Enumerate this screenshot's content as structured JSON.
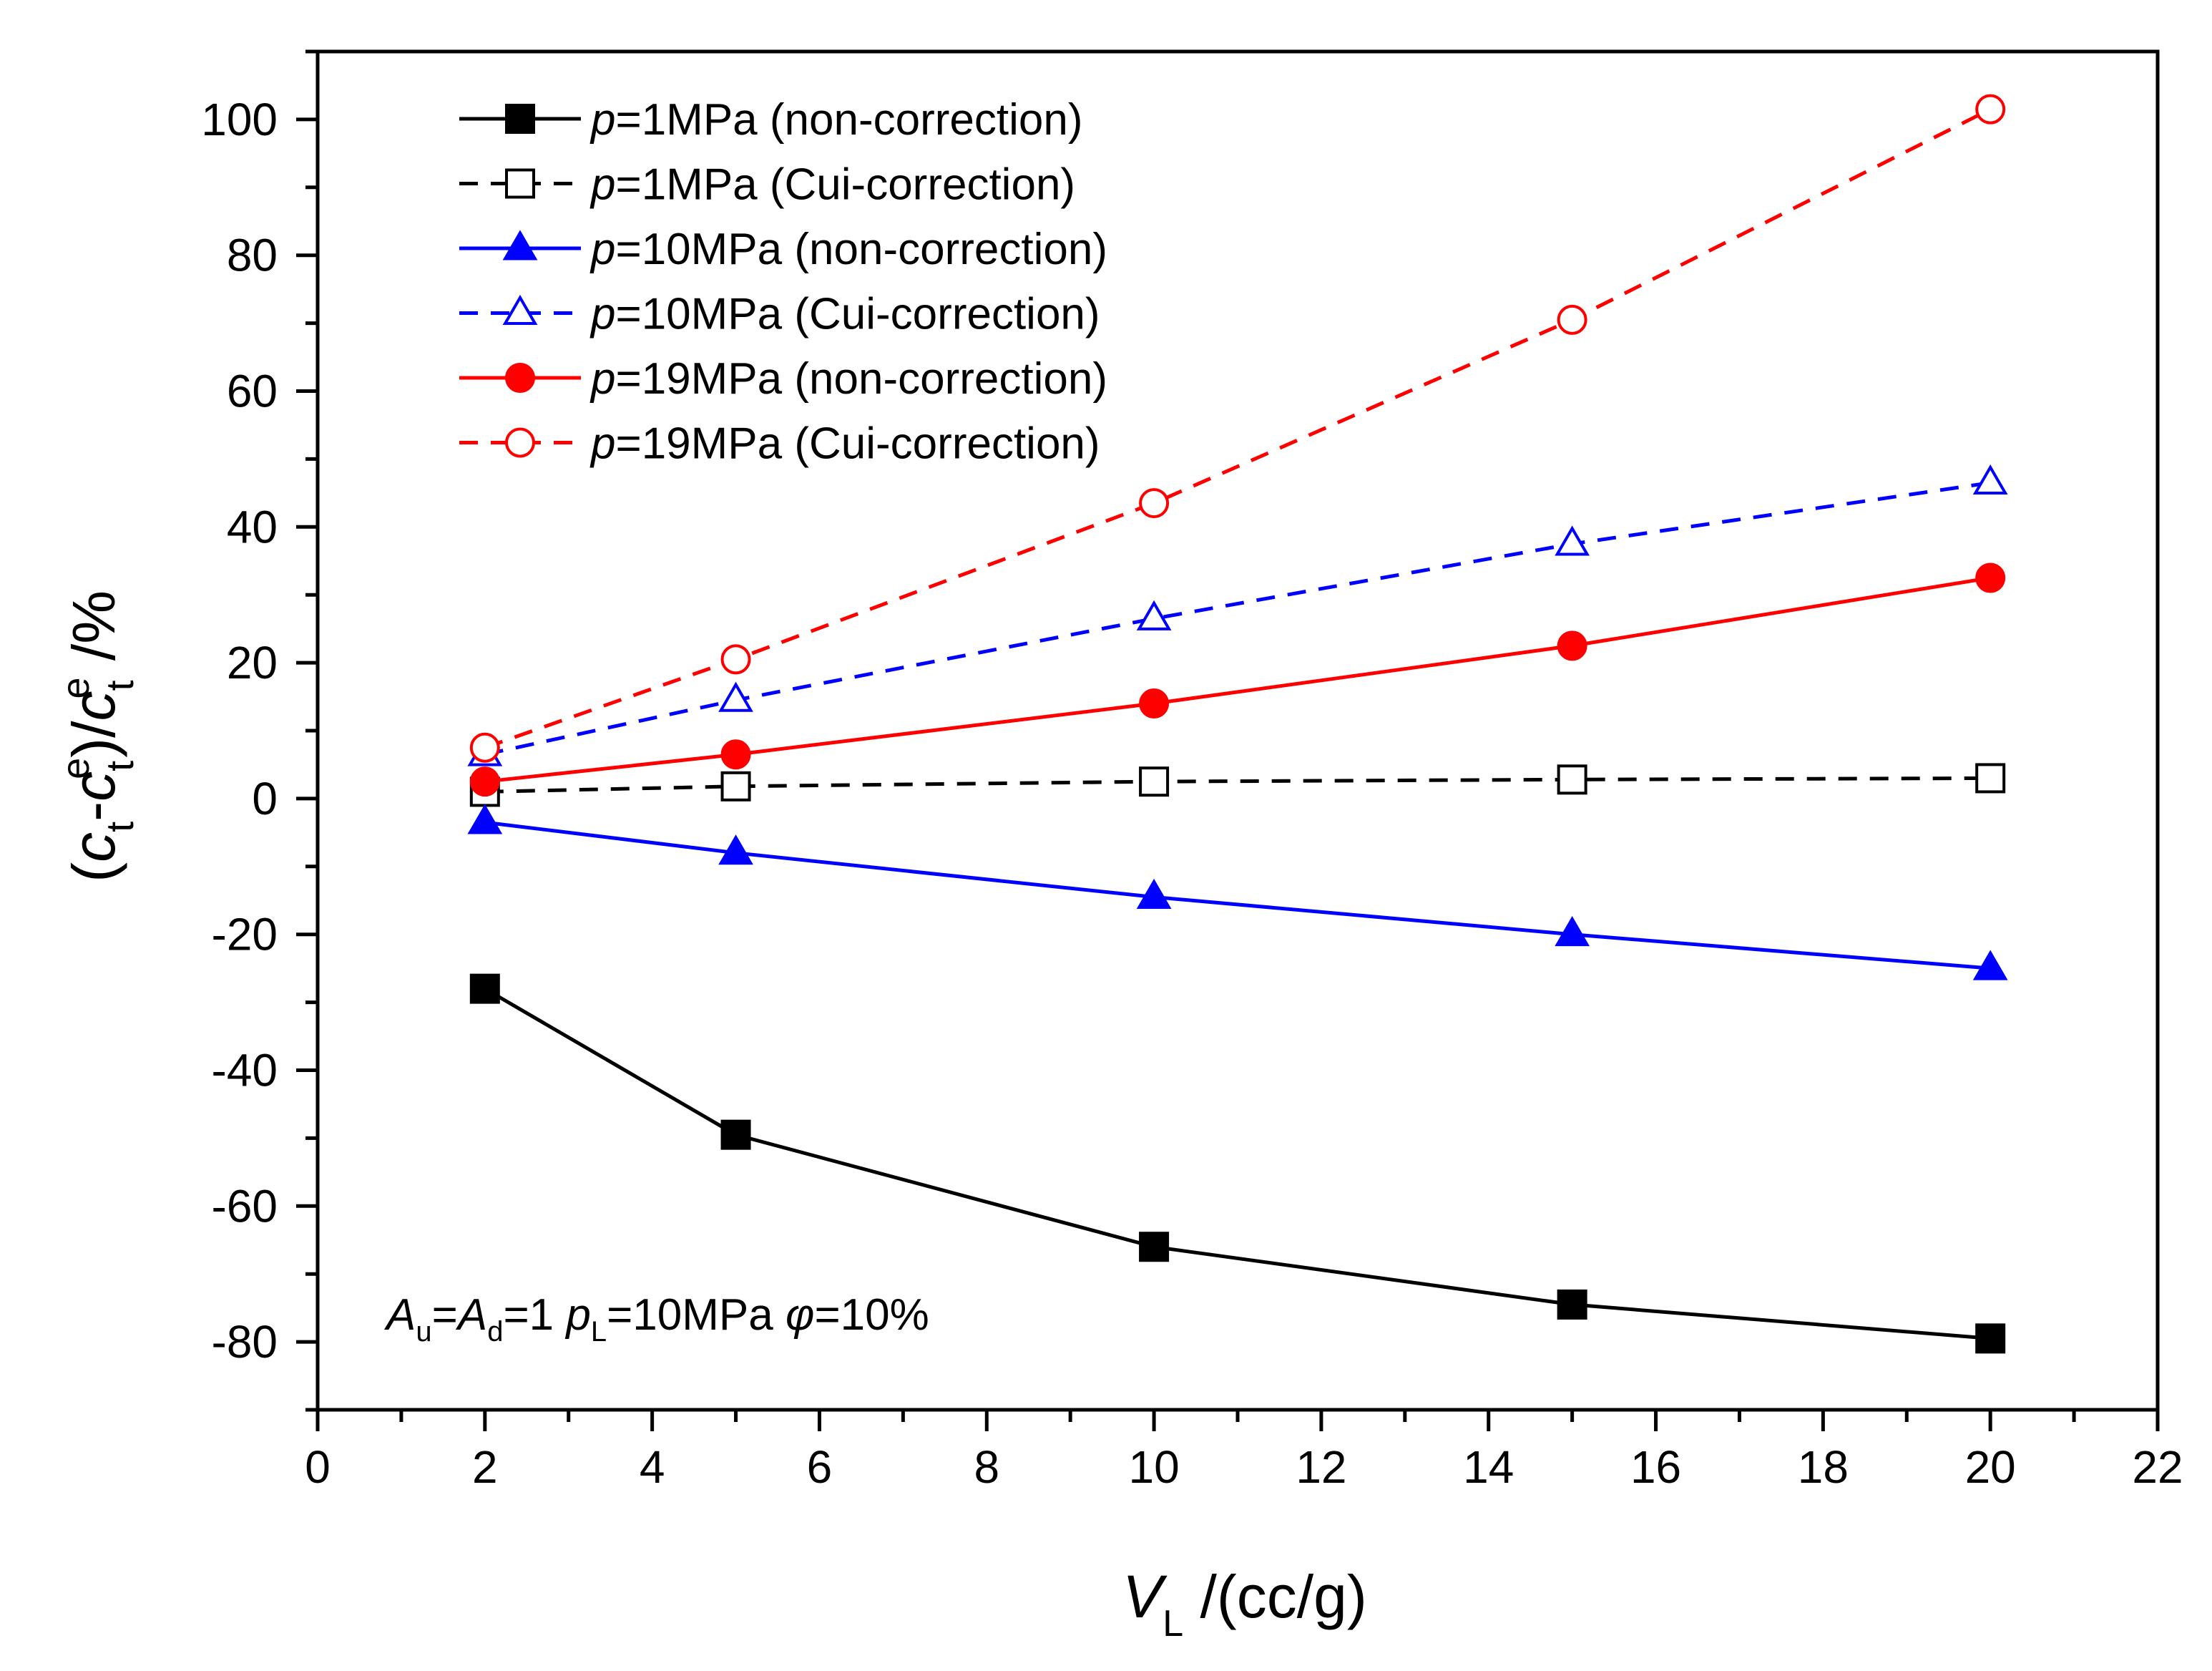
{
  "chart_data": {
    "type": "line",
    "xlabel": {
      "main": "V",
      "sub": "L",
      "rest": " /(cc/g)"
    },
    "ylabel": "(c_t - c_t^e)/c_t^e /%",
    "xlim": [
      0,
      22
    ],
    "ylim": [
      -90,
      110
    ],
    "x_ticks": [
      0,
      2,
      4,
      6,
      8,
      10,
      12,
      14,
      16,
      18,
      20,
      22
    ],
    "y_ticks": [
      -80,
      -60,
      -40,
      -20,
      0,
      20,
      40,
      60,
      80,
      100
    ],
    "x": [
      2,
      5,
      10,
      15,
      20
    ],
    "legend_position": "top-left",
    "grid": false,
    "series": [
      {
        "name": "p=1MPa (non-correction)",
        "p": "p",
        "rest": "=1MPa (non-correction)",
        "values": [
          -28,
          -49.5,
          -66,
          -74.5,
          -79.5
        ],
        "color": "#000000",
        "marker": "square",
        "filled": true,
        "dashed": false
      },
      {
        "name": "p=1MPa (Cui-correction)",
        "p": "p",
        "rest": "=1MPa (Cui-correction)",
        "values": [
          1,
          1.8,
          2.5,
          2.8,
          3
        ],
        "color": "#000000",
        "marker": "square",
        "filled": false,
        "dashed": true
      },
      {
        "name": "p=10MPa (non-correction)",
        "p": "p",
        "rest": "=10MPa (non-correction)",
        "values": [
          -3.5,
          -8,
          -14.5,
          -20,
          -25
        ],
        "color": "#0000ff",
        "marker": "triangle",
        "filled": true,
        "dashed": false
      },
      {
        "name": "p=10MPa (Cui-correction)",
        "p": "p",
        "rest": "=10MPa (Cui-correction)",
        "values": [
          6.5,
          14.5,
          26.5,
          37.5,
          46.5
        ],
        "color": "#0000ff",
        "marker": "triangle",
        "filled": false,
        "dashed": true
      },
      {
        "name": "p=19MPa (non-correction)",
        "p": "p",
        "rest": "=19MPa (non-correction)",
        "values": [
          2.5,
          6.5,
          14,
          22.5,
          32.5
        ],
        "color": "#ff0000",
        "marker": "circle",
        "filled": true,
        "dashed": false
      },
      {
        "name": "p=19MPa (Cui-correction)",
        "p": "p",
        "rest": "=19MPa (Cui-correction)",
        "values": [
          7.5,
          20.5,
          43.5,
          70.5,
          101.5
        ],
        "color": "#ff0000",
        "marker": "circle",
        "filled": false,
        "dashed": true
      }
    ],
    "annotation": {
      "text": "Au=Ad=1 pL=10MPa φ=10%",
      "a": "A",
      "u": "u",
      "eq1": "=",
      "a2": "A",
      "d": "d",
      "eq2": "=1 ",
      "p": "p",
      "l": "L",
      "eq3": "=10MPa ",
      "phi": "φ",
      "eq4": "=10%"
    }
  }
}
